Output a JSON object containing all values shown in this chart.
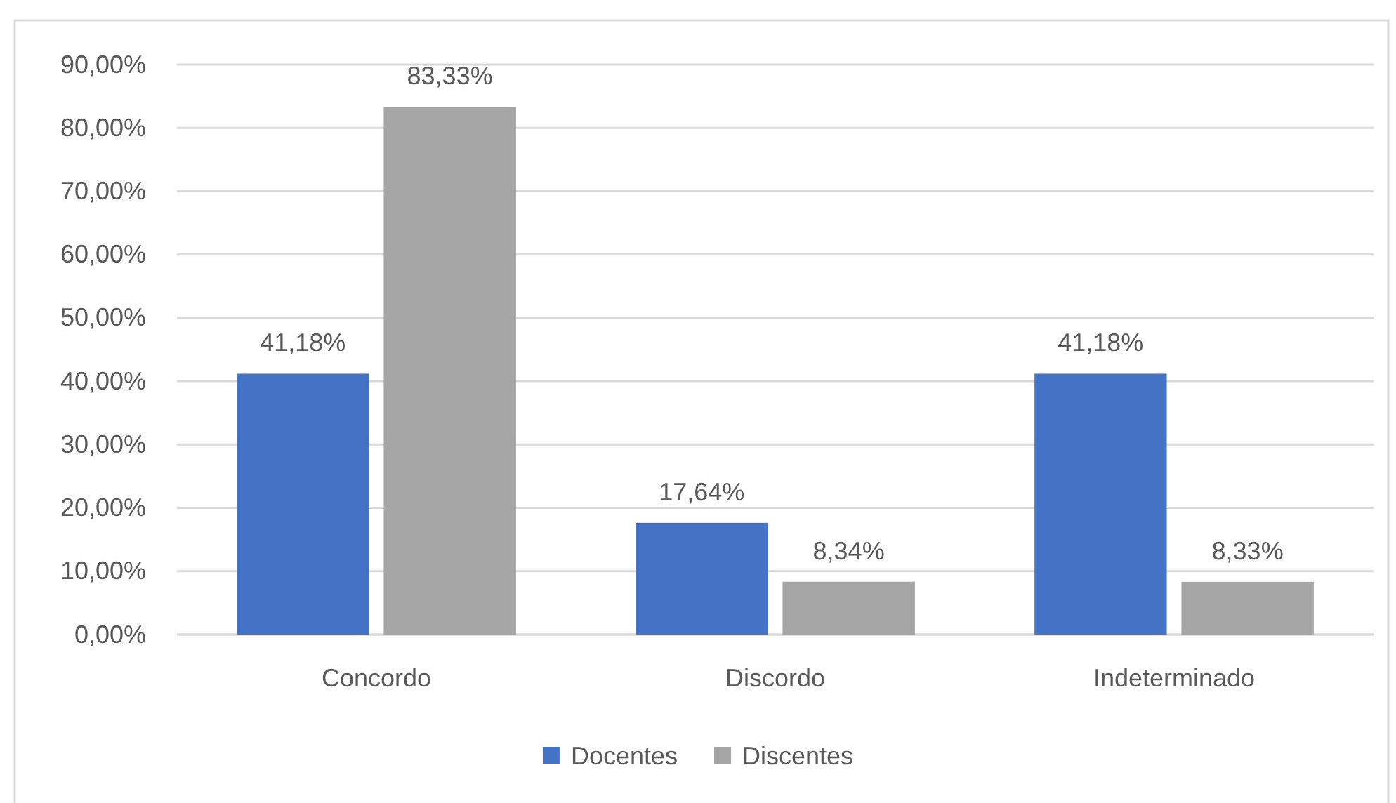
{
  "chart_data": {
    "type": "bar",
    "categories": [
      "Concordo",
      "Discordo",
      "Indeterminado"
    ],
    "series": [
      {
        "name": "Docentes",
        "color": "#4472c4",
        "values": [
          41.18,
          17.64,
          41.18
        ],
        "value_labels": [
          "41,18%",
          "17,64%",
          "41,18%"
        ]
      },
      {
        "name": "Discentes",
        "color": "#a5a5a5",
        "values": [
          83.33,
          8.34,
          8.33
        ],
        "value_labels": [
          "83,33%",
          "8,34%",
          "8,33%"
        ]
      }
    ],
    "ylim": [
      0,
      90
    ],
    "yticks": [
      {
        "value": 0,
        "label": "0,00%"
      },
      {
        "value": 10,
        "label": "10,00%"
      },
      {
        "value": 20,
        "label": "20,00%"
      },
      {
        "value": 30,
        "label": "30,00%"
      },
      {
        "value": 40,
        "label": "40,00%"
      },
      {
        "value": 50,
        "label": "50,00%"
      },
      {
        "value": 60,
        "label": "60,00%"
      },
      {
        "value": 70,
        "label": "70,00%"
      },
      {
        "value": 80,
        "label": "80,00%"
      },
      {
        "value": 90,
        "label": "90,00%"
      }
    ],
    "grid": "y",
    "legend": "bottom"
  }
}
